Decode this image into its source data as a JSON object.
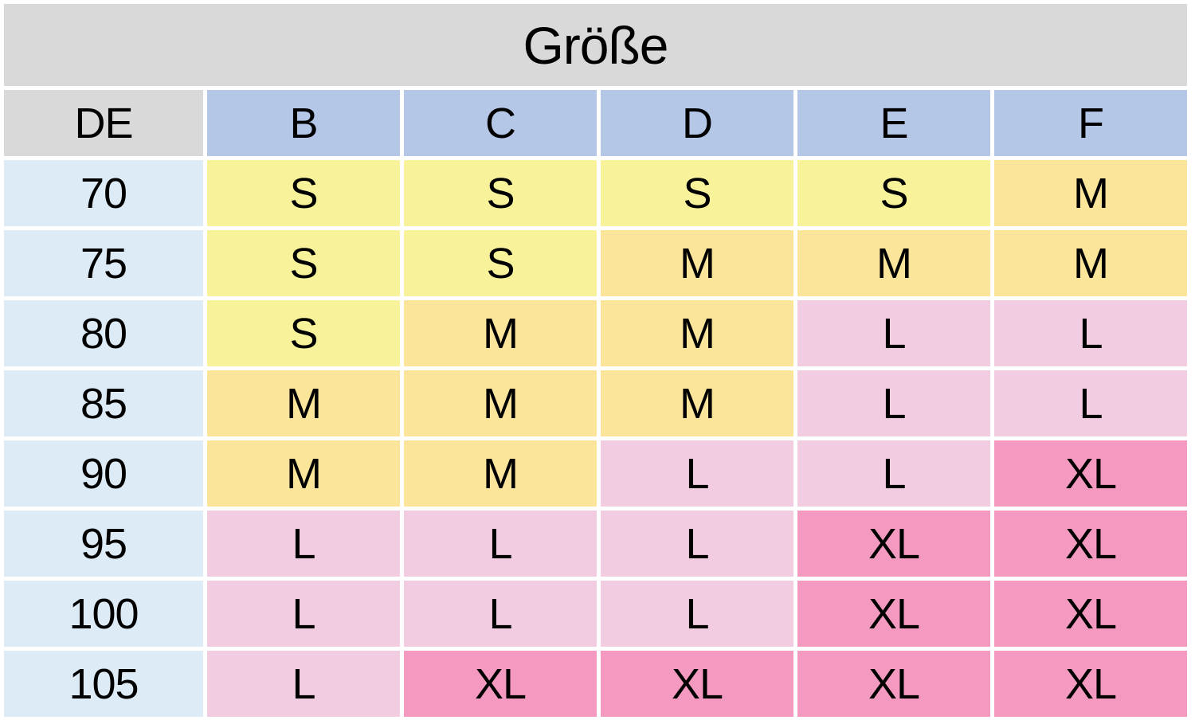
{
  "table": {
    "title": "Größe",
    "corner": "DE",
    "columns": [
      "B",
      "C",
      "D",
      "E",
      "F"
    ],
    "rows": [
      {
        "label": "70",
        "cells": [
          "S",
          "S",
          "S",
          "S",
          "M"
        ]
      },
      {
        "label": "75",
        "cells": [
          "S",
          "S",
          "M",
          "M",
          "M"
        ]
      },
      {
        "label": "80",
        "cells": [
          "S",
          "M",
          "M",
          "L",
          "L"
        ]
      },
      {
        "label": "85",
        "cells": [
          "M",
          "M",
          "M",
          "L",
          "L"
        ]
      },
      {
        "label": "90",
        "cells": [
          "M",
          "M",
          "L",
          "L",
          "XL"
        ]
      },
      {
        "label": "95",
        "cells": [
          "L",
          "L",
          "L",
          "XL",
          "XL"
        ]
      },
      {
        "label": "100",
        "cells": [
          "L",
          "L",
          "L",
          "XL",
          "XL"
        ]
      },
      {
        "label": "105",
        "cells": [
          "L",
          "XL",
          "XL",
          "XL",
          "XL"
        ]
      }
    ],
    "cell_colors": {
      "S": "#f8f39b",
      "M": "#fbe59a",
      "L": "#f2cde1",
      "XL": "#f49ac0"
    }
  }
}
